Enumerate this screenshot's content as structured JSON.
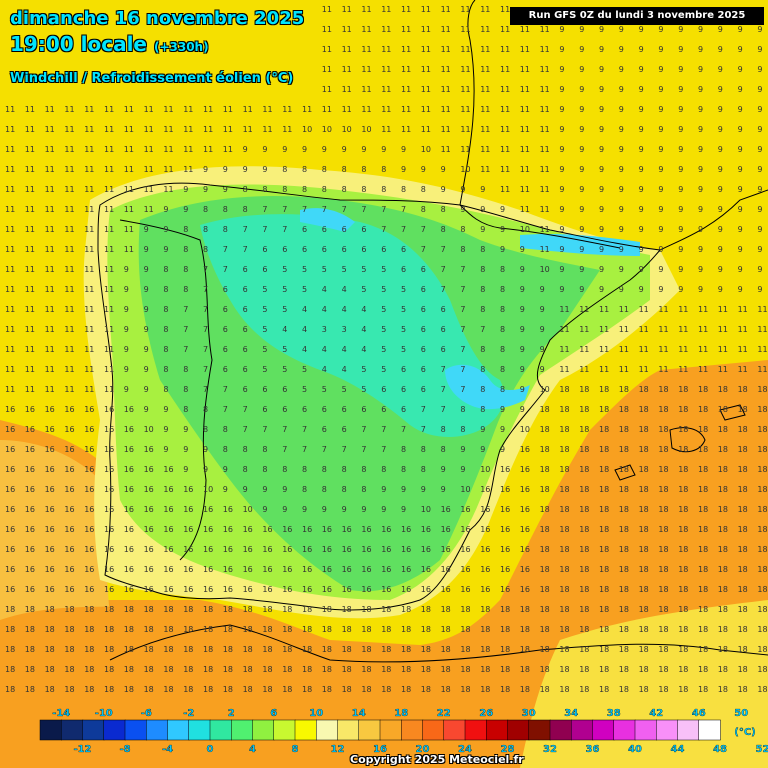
{
  "header": {
    "date_line": "dimanche 16 novembre 2025",
    "time_line": "19:00 locale",
    "offset": "(+330h)",
    "parameter": "Windchill / Refroidissement éolien (°C)",
    "run_info": "Run GFS 0Z du lundi 3 novembre 2025"
  },
  "footer": {
    "copyright": "Copyright 2025 Meteociel.fr"
  },
  "legend": {
    "unit": "(°C)",
    "top_labels": [
      "-14",
      "-10",
      "-6",
      "-2",
      "2",
      "6",
      "10",
      "14",
      "18",
      "22",
      "26",
      "30",
      "34",
      "38",
      "42",
      "46",
      "50"
    ],
    "bottom_labels": [
      "-12",
      "-8",
      "-4",
      "0",
      "4",
      "8",
      "12",
      "16",
      "20",
      "24",
      "28",
      "32",
      "36",
      "40",
      "44",
      "48",
      "52"
    ],
    "colors": [
      "#0a1a4a",
      "#102a6e",
      "#0e3a9a",
      "#0a2ad0",
      "#0a50f0",
      "#1e8cff",
      "#30c8ff",
      "#20e0e0",
      "#30e8a0",
      "#50f070",
      "#90f040",
      "#c8f830",
      "#f8f800",
      "#f8f8b0",
      "#f8e868",
      "#f8c840",
      "#f8a828",
      "#f88820",
      "#f86818",
      "#f84830",
      "#f01010",
      "#c80000",
      "#a00000",
      "#801000",
      "#900050",
      "#b00090",
      "#d000c0",
      "#e830e0",
      "#f060f0",
      "#f890f8",
      "#f8c0f8",
      "#ffffff"
    ]
  },
  "map": {
    "region": "Iberian Peninsula",
    "colors": {
      "sea_yellow": "#f5e000",
      "pale_yellow": "#f8f07a",
      "lime": "#a8f040",
      "green": "#60e060",
      "cyan_green": "#38e8b0",
      "cyan": "#40d8f8",
      "orange": "#f8a020",
      "light_orange": "#f8c040",
      "border": "#000000"
    }
  }
}
